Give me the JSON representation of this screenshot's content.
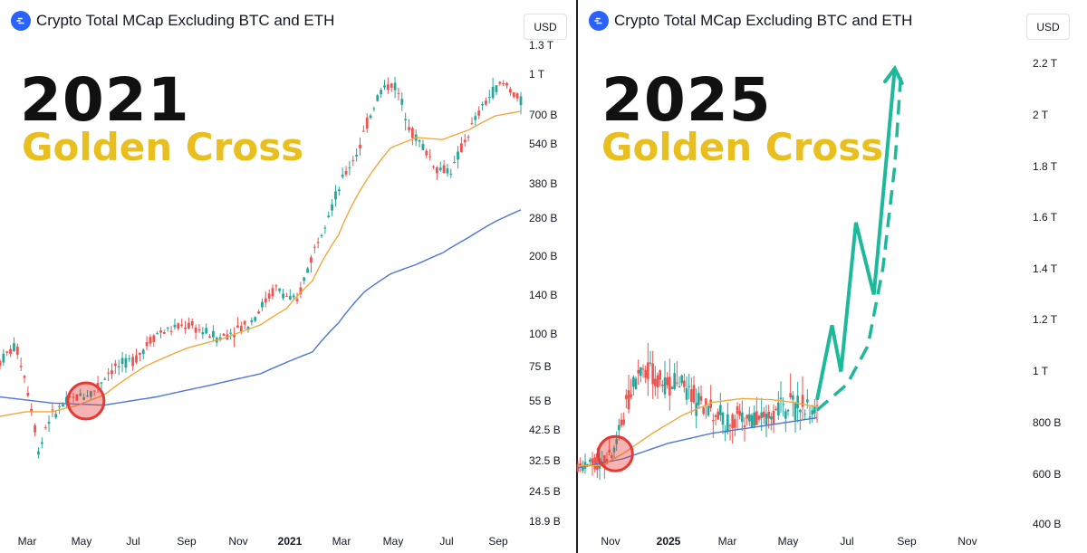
{
  "left": {
    "header_title": "Crypto Total MCap Excluding BTC and ETH",
    "currency": "USD",
    "year": "2021",
    "subtitle": "Golden Cross"
  },
  "right": {
    "header_title": "Crypto Total MCap Excluding BTC and ETH",
    "currency": "USD",
    "year": "2025",
    "subtitle": "Golden Cross"
  },
  "colors": {
    "up": "#26a69a",
    "down": "#ef5350",
    "ma_short": "#f2a83b",
    "ma_long": "#4a76d6",
    "projection": "#1db99a",
    "cross_marker": "#e53935",
    "subtitle": "#e9be1f"
  },
  "chart_data": [
    {
      "type": "candlestick",
      "scale": "log",
      "y_tick_labels": [
        "1.3 T",
        "1 T",
        "700 B",
        "540 B",
        "380 B",
        "280 B",
        "200 B",
        "140 B",
        "100 B",
        "75 B",
        "55 B",
        "42.5 B",
        "32.5 B",
        "24.5 B",
        "18.9 B"
      ],
      "x_tick_labels": [
        {
          "label": "Mar",
          "bold": false
        },
        {
          "label": "May",
          "bold": false
        },
        {
          "label": "Jul",
          "bold": false
        },
        {
          "label": "Sep",
          "bold": false
        },
        {
          "label": "Nov",
          "bold": false
        },
        {
          "label": "2021",
          "bold": true
        },
        {
          "label": "Mar",
          "bold": false
        },
        {
          "label": "May",
          "bold": false
        },
        {
          "label": "Jul",
          "bold": false
        },
        {
          "label": "Sep",
          "bold": false
        }
      ],
      "price_path": [
        [
          0,
          78
        ],
        [
          0.03,
          90
        ],
        [
          0.06,
          52
        ],
        [
          0.075,
          34
        ],
        [
          0.09,
          46
        ],
        [
          0.13,
          55
        ],
        [
          0.18,
          60
        ],
        [
          0.21,
          72
        ],
        [
          0.26,
          80
        ],
        [
          0.3,
          100
        ],
        [
          0.36,
          108
        ],
        [
          0.42,
          96
        ],
        [
          0.48,
          110
        ],
        [
          0.53,
          150
        ],
        [
          0.57,
          130
        ],
        [
          0.6,
          200
        ],
        [
          0.64,
          320
        ],
        [
          0.69,
          520
        ],
        [
          0.73,
          860
        ],
        [
          0.755,
          930
        ],
        [
          0.79,
          600
        ],
        [
          0.84,
          430
        ],
        [
          0.87,
          430
        ],
        [
          0.91,
          650
        ],
        [
          0.95,
          880
        ],
        [
          0.97,
          920
        ],
        [
          1.0,
          780
        ]
      ],
      "ma_short_path": [
        [
          0,
          48
        ],
        [
          0.05,
          50
        ],
        [
          0.1,
          50
        ],
        [
          0.15,
          53
        ],
        [
          0.2,
          58
        ],
        [
          0.28,
          75
        ],
        [
          0.36,
          88
        ],
        [
          0.43,
          96
        ],
        [
          0.5,
          108
        ],
        [
          0.55,
          125
        ],
        [
          0.6,
          160
        ],
        [
          0.65,
          240
        ],
        [
          0.7,
          380
        ],
        [
          0.75,
          520
        ],
        [
          0.8,
          570
        ],
        [
          0.85,
          560
        ],
        [
          0.9,
          610
        ],
        [
          0.95,
          690
        ],
        [
          1.0,
          720
        ]
      ],
      "ma_long_path": [
        [
          0,
          57
        ],
        [
          0.1,
          54
        ],
        [
          0.2,
          53
        ],
        [
          0.3,
          57
        ],
        [
          0.4,
          63
        ],
        [
          0.5,
          70
        ],
        [
          0.6,
          85
        ],
        [
          0.65,
          110
        ],
        [
          0.7,
          145
        ],
        [
          0.75,
          170
        ],
        [
          0.8,
          185
        ],
        [
          0.85,
          205
        ],
        [
          0.9,
          235
        ],
        [
          0.95,
          270
        ],
        [
          1.0,
          300
        ]
      ],
      "cross_at": [
        0.165,
        55
      ]
    },
    {
      "type": "candlestick",
      "scale": "linear",
      "y_tick_labels": [
        "2.2 T",
        "2 T",
        "1.8 T",
        "1.6 T",
        "1.4 T",
        "1.2 T",
        "1 T",
        "800 B",
        "600 B",
        "400 B"
      ],
      "x_tick_labels": [
        {
          "label": "Nov",
          "bold": false
        },
        {
          "label": "2025",
          "bold": true
        },
        {
          "label": "Mar",
          "bold": false
        },
        {
          "label": "May",
          "bold": false
        },
        {
          "label": "Jul",
          "bold": false
        },
        {
          "label": "Sep",
          "bold": false
        },
        {
          "label": "Nov",
          "bold": false
        }
      ],
      "price_path": [
        [
          0,
          630
        ],
        [
          0.06,
          640
        ],
        [
          0.1,
          650
        ],
        [
          0.13,
          720
        ],
        [
          0.16,
          860
        ],
        [
          0.19,
          980
        ],
        [
          0.23,
          1000
        ],
        [
          0.27,
          970
        ],
        [
          0.3,
          960
        ],
        [
          0.34,
          970
        ],
        [
          0.37,
          920
        ],
        [
          0.4,
          880
        ],
        [
          0.43,
          860
        ],
        [
          0.46,
          830
        ],
        [
          0.5,
          800
        ],
        [
          0.55,
          820
        ],
        [
          0.6,
          810
        ],
        [
          0.65,
          840
        ],
        [
          0.7,
          850
        ],
        [
          0.74,
          870
        ],
        [
          0.77,
          860
        ],
        [
          0.8,
          850
        ]
      ],
      "ma_short_path": [
        [
          0,
          632
        ],
        [
          0.08,
          635
        ],
        [
          0.15,
          680
        ],
        [
          0.25,
          760
        ],
        [
          0.35,
          830
        ],
        [
          0.45,
          880
        ],
        [
          0.55,
          895
        ],
        [
          0.65,
          890
        ],
        [
          0.72,
          880
        ],
        [
          0.8,
          862
        ]
      ],
      "ma_long_path": [
        [
          0,
          625
        ],
        [
          0.15,
          660
        ],
        [
          0.3,
          720
        ],
        [
          0.45,
          760
        ],
        [
          0.6,
          785
        ],
        [
          0.8,
          820
        ]
      ],
      "projection_zigzag": [
        [
          0.8,
          890
        ],
        [
          0.85,
          1180
        ],
        [
          0.88,
          1000
        ],
        [
          0.93,
          1580
        ],
        [
          0.99,
          1300
        ],
        [
          1.06,
          2180
        ]
      ],
      "projection_curve": [
        [
          0.8,
          850
        ],
        [
          0.9,
          950
        ],
        [
          0.97,
          1100
        ],
        [
          1.02,
          1400
        ],
        [
          1.06,
          1800
        ],
        [
          1.08,
          2150
        ]
      ],
      "cross_at": [
        0.125,
        680
      ]
    }
  ]
}
